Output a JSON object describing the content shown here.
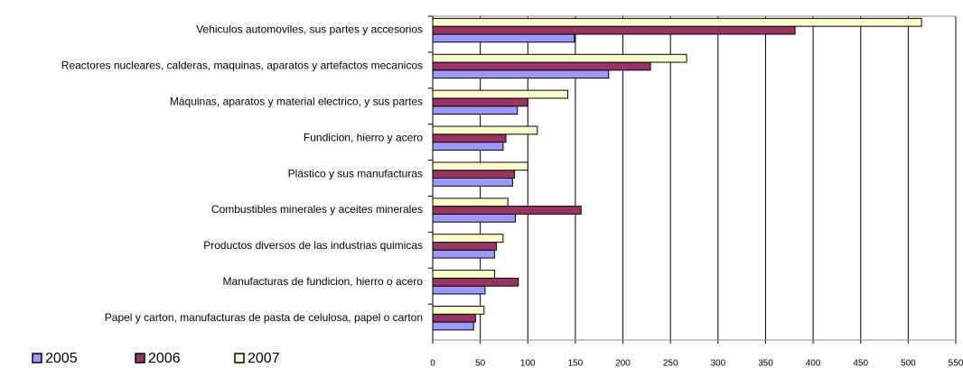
{
  "chart_data": {
    "type": "bar",
    "orientation": "horizontal",
    "categories": [
      "Vehiculos automoviles,  sus partes y accesorios",
      "Reactores nucleares, calderas, maquinas, aparatos y artefactos mecanicos",
      "Máquinas, aparatos y material electrico, y sus partes",
      "Fundicion, hierro y acero",
      "Plástico y sus manufacturas",
      "Combustibles minerales y aceites minerales",
      "Productos diversos de las industrias quimicas",
      "Manufacturas de fundicion, hierro o acero",
      "Papel y carton, manufacturas de pasta de celulosa, papel o carton"
    ],
    "series": [
      {
        "name": "2005",
        "color": "#9999ff",
        "values": [
          149,
          185,
          89,
          74,
          84,
          87,
          65,
          55,
          43
        ]
      },
      {
        "name": "2006",
        "color": "#993366",
        "values": [
          381,
          229,
          100,
          77,
          86,
          156,
          67,
          90,
          45
        ]
      },
      {
        "name": "2007",
        "color": "#ffffcc",
        "values": [
          514,
          267,
          142,
          110,
          100,
          79,
          74,
          65,
          54
        ]
      }
    ],
    "xlim": [
      0,
      550
    ],
    "xticks": [
      0,
      50,
      100,
      150,
      200,
      250,
      300,
      350,
      400,
      450,
      500,
      550
    ],
    "grid": true,
    "legend": "bottom-left"
  }
}
